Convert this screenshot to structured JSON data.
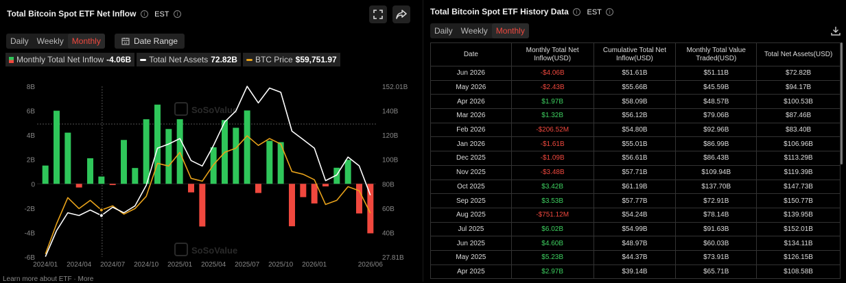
{
  "left": {
    "title": "Total Bitcoin Spot ETF Net Inflow",
    "timezone": "EST",
    "tabs": [
      {
        "label": "Daily",
        "active": false
      },
      {
        "label": "Weekly",
        "active": false
      },
      {
        "label": "Monthly",
        "active": true
      }
    ],
    "date_range_label": "Date Range",
    "legend": {
      "inflow_label": "Monthly Total Net Inflow",
      "inflow_value": "-4.06B",
      "assets_label": "Total Net Assets",
      "assets_value": "72.82B",
      "price_label": "BTC Price",
      "price_value": "$59,751.97"
    },
    "watermark": "SoSoValue",
    "footer": "Learn more about ETF · More"
  },
  "chart_data": {
    "type": "bar",
    "x": [
      "2024/01",
      "2024/02",
      "2024/03",
      "2024/04",
      "2024/05",
      "2024/06",
      "2024/07",
      "2024/08",
      "2024/09",
      "2024/10",
      "2024/11",
      "2024/12",
      "2025/01",
      "2025/02",
      "2025/03",
      "2025/04",
      "2025/05",
      "2025/06",
      "2025/07",
      "2025/08",
      "2025/09",
      "2025/10",
      "2025/11",
      "2025/12",
      "2026/01",
      "2026/02",
      "2026/03",
      "2026/04",
      "2026/05",
      "2026/06"
    ],
    "x_tick_labels": [
      "2024/01",
      "2024/04",
      "2024/07",
      "2024/10",
      "2025/01",
      "2025/04",
      "2025/07",
      "2025/10",
      "2026/01",
      "2026/06"
    ],
    "left_ticks": [
      "8B",
      "6B",
      "4B",
      "2B",
      "0",
      "-2B",
      "-4B",
      "-6B"
    ],
    "right_ticks": [
      "152.01B",
      "140B",
      "120B",
      "100B",
      "80B",
      "60B",
      "40B",
      "27.81B"
    ],
    "ylim_left": [
      -6,
      8
    ],
    "ylim_right": [
      27.81,
      152.01
    ],
    "colors": {
      "positive": "#2fc65a",
      "negative": "#f0483e",
      "assets": "#ffffff",
      "price": "#e8a21a"
    },
    "series": [
      {
        "name": "Monthly Total Net Inflow",
        "axis": "left",
        "type": "bar",
        "values": [
          1.5,
          6.0,
          4.2,
          -0.3,
          2.1,
          0.6,
          -0.1,
          3.6,
          1.3,
          5.3,
          6.5,
          4.5,
          5.3,
          -0.7,
          -3.5,
          3.0,
          5.23,
          4.6,
          6.02,
          -0.75,
          3.53,
          3.42,
          -3.48,
          -1.09,
          -1.61,
          -0.21,
          1.32,
          1.97,
          -2.43,
          -4.06
        ]
      },
      {
        "name": "Total Net Assets",
        "axis": "right",
        "type": "line",
        "values": [
          28.0,
          47.0,
          60.0,
          58.0,
          62.0,
          58.0,
          64.0,
          60.0,
          65.0,
          80.0,
          107.0,
          110.0,
          114.0,
          98.0,
          94.0,
          109.0,
          126.15,
          134.11,
          152.01,
          139.95,
          150.77,
          147.73,
          119.39,
          113.29,
          106.96,
          83.4,
          87.46,
          100.53,
          94.17,
          72.82
        ]
      },
      {
        "name": "BTC Price",
        "axis": "right",
        "type": "line",
        "values": [
          30.0,
          52.0,
          71.0,
          63.0,
          69.0,
          62.0,
          65.0,
          59.0,
          63.0,
          72.0,
          96.0,
          94.0,
          104.0,
          85.0,
          83.0,
          95.0,
          104.0,
          107.0,
          116.0,
          109.0,
          114.0,
          110.0,
          90.0,
          88.0,
          84.0,
          66.0,
          69.0,
          79.0,
          76.0,
          59.75
        ]
      }
    ]
  },
  "right": {
    "title": "Total Bitcoin Spot ETF History Data",
    "timezone": "EST",
    "tabs": [
      {
        "label": "Daily",
        "active": false
      },
      {
        "label": "Weekly",
        "active": false
      },
      {
        "label": "Monthly",
        "active": true
      }
    ],
    "columns": [
      "Date",
      "Monthly Total Net Inflow(USD)",
      "Cumulative Total Net Inflow(USD)",
      "Monthly Total Value Traded(USD)",
      "Total Net Assets(USD)"
    ],
    "rows": [
      {
        "date": "Jun 2026",
        "inflow": "-$4.06B",
        "cumulative": "$51.61B",
        "traded": "$51.11B",
        "assets": "$72.82B",
        "sign": "neg"
      },
      {
        "date": "May 2026",
        "inflow": "-$2.43B",
        "cumulative": "$55.66B",
        "traded": "$45.59B",
        "assets": "$94.17B",
        "sign": "neg"
      },
      {
        "date": "Apr 2026",
        "inflow": "$1.97B",
        "cumulative": "$58.09B",
        "traded": "$48.57B",
        "assets": "$100.53B",
        "sign": "pos"
      },
      {
        "date": "Mar 2026",
        "inflow": "$1.32B",
        "cumulative": "$56.12B",
        "traded": "$79.06B",
        "assets": "$87.46B",
        "sign": "pos"
      },
      {
        "date": "Feb 2026",
        "inflow": "-$206.52M",
        "cumulative": "$54.80B",
        "traded": "$92.96B",
        "assets": "$83.40B",
        "sign": "neg"
      },
      {
        "date": "Jan 2026",
        "inflow": "-$1.61B",
        "cumulative": "$55.01B",
        "traded": "$86.99B",
        "assets": "$106.96B",
        "sign": "neg"
      },
      {
        "date": "Dec 2025",
        "inflow": "-$1.09B",
        "cumulative": "$56.61B",
        "traded": "$86.43B",
        "assets": "$113.29B",
        "sign": "neg"
      },
      {
        "date": "Nov 2025",
        "inflow": "-$3.48B",
        "cumulative": "$57.71B",
        "traded": "$109.94B",
        "assets": "$119.39B",
        "sign": "neg"
      },
      {
        "date": "Oct 2025",
        "inflow": "$3.42B",
        "cumulative": "$61.19B",
        "traded": "$137.70B",
        "assets": "$147.73B",
        "sign": "pos"
      },
      {
        "date": "Sep 2025",
        "inflow": "$3.53B",
        "cumulative": "$57.77B",
        "traded": "$72.91B",
        "assets": "$150.77B",
        "sign": "pos"
      },
      {
        "date": "Aug 2025",
        "inflow": "-$751.12M",
        "cumulative": "$54.24B",
        "traded": "$78.14B",
        "assets": "$139.95B",
        "sign": "neg"
      },
      {
        "date": "Jul 2025",
        "inflow": "$6.02B",
        "cumulative": "$54.99B",
        "traded": "$91.63B",
        "assets": "$152.01B",
        "sign": "pos"
      },
      {
        "date": "Jun 2025",
        "inflow": "$4.60B",
        "cumulative": "$48.97B",
        "traded": "$60.03B",
        "assets": "$134.11B",
        "sign": "pos"
      },
      {
        "date": "May 2025",
        "inflow": "$5.23B",
        "cumulative": "$44.37B",
        "traded": "$73.91B",
        "assets": "$126.15B",
        "sign": "pos"
      },
      {
        "date": "Apr 2025",
        "inflow": "$2.97B",
        "cumulative": "$39.14B",
        "traded": "$65.71B",
        "assets": "$108.58B",
        "sign": "pos"
      }
    ]
  }
}
